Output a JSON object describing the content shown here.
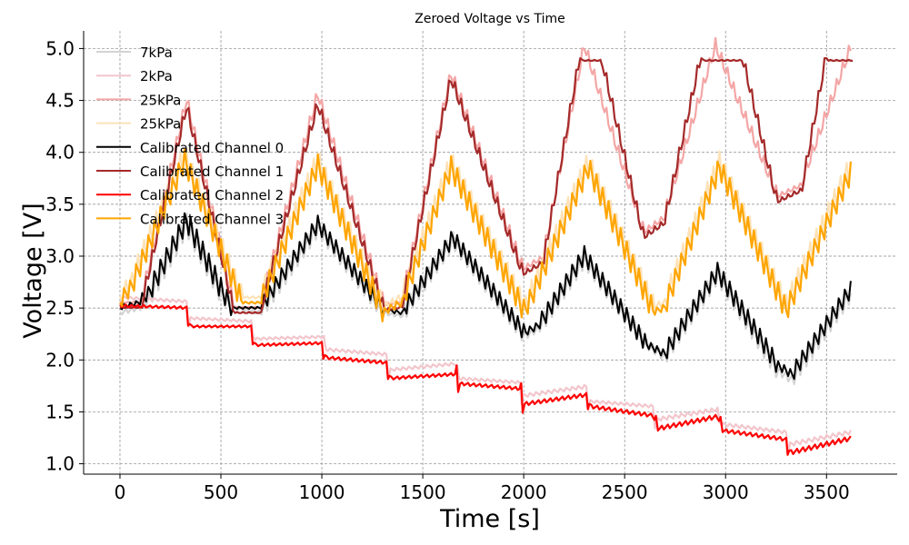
{
  "chart_data": {
    "type": "line",
    "title": "Zeroed Voltage vs Time",
    "xlabel": "Time [s]",
    "ylabel": "Voltage [V]",
    "xlim": [
      -180,
      3850
    ],
    "ylim": [
      0.9,
      5.17
    ],
    "xticks": [
      0,
      500,
      1000,
      1500,
      2000,
      2500,
      3000,
      3500
    ],
    "yticks": [
      1.0,
      1.5,
      2.0,
      2.5,
      3.0,
      3.5,
      4.0,
      4.5,
      5.0
    ],
    "ytick_labels": [
      "1.0",
      "1.5",
      "2.0",
      "2.5",
      "3.0",
      "3.5",
      "4.0",
      "4.5",
      "5.0"
    ],
    "grid": true,
    "legend_position": "top-left",
    "series": [
      {
        "name": "7kPa",
        "color": "#d3d3d3",
        "width": 2.2,
        "x": [
          0,
          100,
          150,
          330,
          500,
          550,
          700,
          980,
          1300,
          1400,
          1650,
          2000,
          2080,
          2300,
          2600,
          2700,
          2960,
          3250,
          3330,
          3620
        ],
        "y": [
          2.45,
          2.5,
          2.6,
          3.28,
          2.62,
          2.5,
          2.45,
          3.25,
          2.45,
          2.42,
          3.13,
          2.22,
          2.3,
          2.95,
          2.15,
          2.02,
          2.8,
          1.9,
          1.8,
          2.62
        ]
      },
      {
        "name": "2kPa",
        "color": "#f2c6cc",
        "width": 2.2,
        "x": [
          0,
          330,
          340,
          650,
          660,
          1000,
          1010,
          1320,
          1330,
          1660,
          1670,
          1980,
          1990,
          2310,
          2320,
          2640,
          2650,
          2960,
          2970,
          3300,
          3310,
          3620
        ],
        "y": [
          2.6,
          2.56,
          2.4,
          2.37,
          2.2,
          2.22,
          2.1,
          2.05,
          1.9,
          1.96,
          1.82,
          1.78,
          1.65,
          1.74,
          1.6,
          1.55,
          1.42,
          1.52,
          1.38,
          1.3,
          1.18,
          1.3
        ]
      },
      {
        "name": "25kPa",
        "color": "#f4a6a6",
        "width": 2.2,
        "x": [
          0,
          110,
          330,
          560,
          700,
          980,
          1300,
          1400,
          1640,
          1990,
          2100,
          2300,
          2590,
          2700,
          2950,
          3250,
          3380,
          3620
        ],
        "y": [
          2.55,
          2.55,
          4.45,
          2.5,
          2.5,
          4.5,
          2.52,
          2.55,
          4.7,
          2.85,
          2.97,
          4.97,
          3.2,
          3.35,
          4.97,
          3.55,
          3.67,
          4.95
        ]
      },
      {
        "name": "25kPa",
        "color": "#fde2b8",
        "width": 2.2,
        "x": [
          0,
          60,
          320,
          600,
          700,
          980,
          1300,
          1400,
          1640,
          2000,
          2020,
          2320,
          2640,
          2700,
          2970,
          3300,
          3620
        ],
        "y": [
          2.6,
          2.75,
          3.95,
          2.6,
          2.6,
          3.9,
          2.5,
          2.6,
          3.88,
          2.5,
          2.55,
          3.88,
          2.5,
          2.55,
          3.88,
          2.5,
          3.85
        ]
      },
      {
        "name": "Calibrated Channel 0",
        "color": "#000000",
        "width": 2.0,
        "x": [
          0,
          100,
          150,
          330,
          500,
          550,
          700,
          980,
          1300,
          1400,
          1650,
          2000,
          2080,
          2300,
          2600,
          2700,
          2960,
          3250,
          3330,
          3620
        ],
        "y": [
          2.5,
          2.55,
          2.65,
          3.32,
          2.66,
          2.5,
          2.5,
          3.29,
          2.48,
          2.45,
          3.16,
          2.25,
          2.33,
          2.99,
          2.15,
          2.05,
          2.83,
          1.95,
          1.85,
          2.66
        ]
      },
      {
        "name": "Calibrated Channel 1",
        "color": "#a52a2a",
        "width": 2.2,
        "x": [
          0,
          110,
          330,
          560,
          700,
          980,
          1300,
          1400,
          1640,
          1990,
          2100,
          2280,
          2380,
          2590,
          2700,
          2880,
          3080,
          3250,
          3380,
          3500,
          3630
        ],
        "y": [
          2.5,
          2.5,
          4.38,
          2.45,
          2.45,
          4.4,
          2.47,
          2.5,
          4.65,
          2.8,
          2.92,
          4.88,
          4.88,
          3.15,
          3.3,
          4.88,
          4.88,
          3.5,
          3.62,
          4.88,
          4.88
        ]
      },
      {
        "name": "Calibrated Channel 2",
        "color": "#ff0000",
        "width": 2.2,
        "x": [
          0,
          330,
          345,
          650,
          665,
          1000,
          1015,
          1320,
          1335,
          1660,
          1675,
          1980,
          1995,
          2310,
          2325,
          2640,
          2655,
          2960,
          2975,
          3300,
          3315,
          3620
        ],
        "y": [
          2.52,
          2.5,
          2.32,
          2.32,
          2.14,
          2.16,
          2.02,
          1.97,
          1.82,
          1.86,
          1.77,
          1.72,
          1.57,
          1.66,
          1.55,
          1.46,
          1.33,
          1.45,
          1.32,
          1.23,
          1.1,
          1.24
        ]
      },
      {
        "name": "Calibrated Channel 3",
        "color": "#ffa500",
        "width": 2.2,
        "x": [
          0,
          60,
          320,
          600,
          700,
          980,
          1300,
          1400,
          1640,
          2000,
          2020,
          2320,
          2640,
          2700,
          2970,
          3300,
          3620
        ],
        "y": [
          2.55,
          2.7,
          3.9,
          2.55,
          2.55,
          3.85,
          2.45,
          2.55,
          3.83,
          2.45,
          2.5,
          3.83,
          2.45,
          2.5,
          3.83,
          2.45,
          3.78
        ]
      }
    ]
  }
}
